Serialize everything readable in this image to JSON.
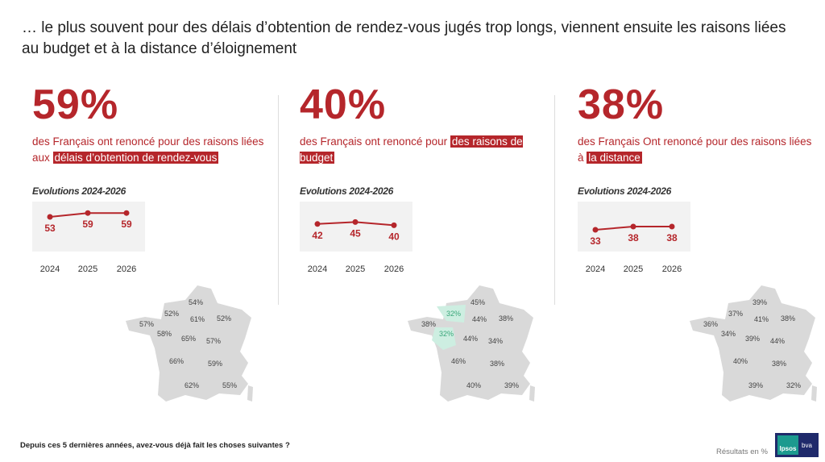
{
  "title": "… le plus souvent pour des délais d’obtention de rendez-vous jugés trop longs, viennent ensuite les raisons liées au budget et à la distance d’éloignement",
  "evolution_label": "Evolutions 2024-2026",
  "years": [
    "2024",
    "2025",
    "2026"
  ],
  "accent": "#b5262b",
  "map_highlight": "#cdeee1",
  "columns": [
    {
      "big": "59%",
      "desc_pre": "des Français ont renoncé pour des raisons liées aux ",
      "desc_hl": "délais d’obtention de rendez-vous",
      "values": [
        53,
        59,
        59
      ],
      "labels": [
        "53",
        "59",
        "59"
      ],
      "regions": [
        "54%",
        "52%",
        "61%",
        "52%",
        "57%",
        "58%",
        "65%",
        "57%",
        "66%",
        "59%",
        "62%",
        "55%"
      ],
      "highlight": []
    },
    {
      "big": "40%",
      "desc_pre": "des Français ont renoncé pour ",
      "desc_hl": "des raisons de budget",
      "values": [
        42,
        45,
        40
      ],
      "labels": [
        "42",
        "45",
        "40"
      ],
      "regions": [
        "45%",
        "32%",
        "44%",
        "38%",
        "38%",
        "32%",
        "44%",
        "34%",
        "46%",
        "38%",
        "40%",
        "39%"
      ],
      "highlight": [
        1,
        5
      ]
    },
    {
      "big": "38%",
      "desc_pre": "des Français Ont renoncé pour des raisons liées à ",
      "desc_hl": "la distance",
      "values": [
        33,
        38,
        38
      ],
      "labels": [
        "33",
        "38",
        "38"
      ],
      "regions": [
        "39%",
        "37%",
        "41%",
        "38%",
        "36%",
        "34%",
        "39%",
        "44%",
        "40%",
        "38%",
        "39%",
        "32%"
      ],
      "highlight": []
    }
  ],
  "question": "Depuis ces 5 dernières années, avez-vous déjà fait les choses suivantes ?",
  "results_note": "Résultats en %",
  "logo": {
    "ipsos": "Ipsos",
    "bva": "bva"
  }
}
